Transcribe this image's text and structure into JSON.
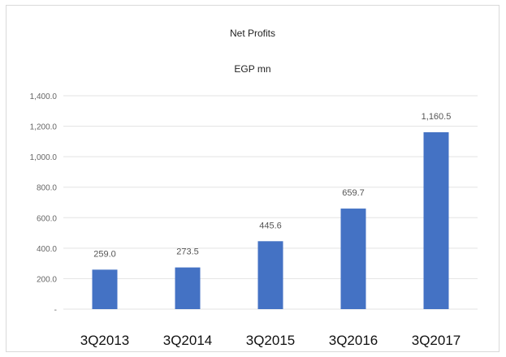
{
  "chart_data": {
    "type": "bar",
    "title": "Net Profits",
    "subtitle": "EGP mn",
    "xlabel": "",
    "ylabel": "",
    "categories": [
      "3Q2013",
      "3Q2014",
      "3Q2015",
      "3Q2016",
      "3Q2017"
    ],
    "values": [
      259.0,
      273.5,
      445.6,
      659.7,
      1160.5
    ],
    "data_labels": [
      "259.0",
      "273.5",
      "445.6",
      "659.7",
      "1,160.5"
    ],
    "ylim": [
      0,
      1400
    ],
    "yticks": [
      0,
      200,
      400,
      600,
      800,
      1000,
      1200,
      1400
    ],
    "ytick_labels": [
      "-",
      "200.0",
      "400.0",
      "600.0",
      "800.0",
      "1,000.0",
      "1,200.0",
      "1,400.0"
    ],
    "grid": true,
    "legend": "none",
    "bar_color": "#4472c4",
    "grid_color": "#e3e3e3"
  }
}
